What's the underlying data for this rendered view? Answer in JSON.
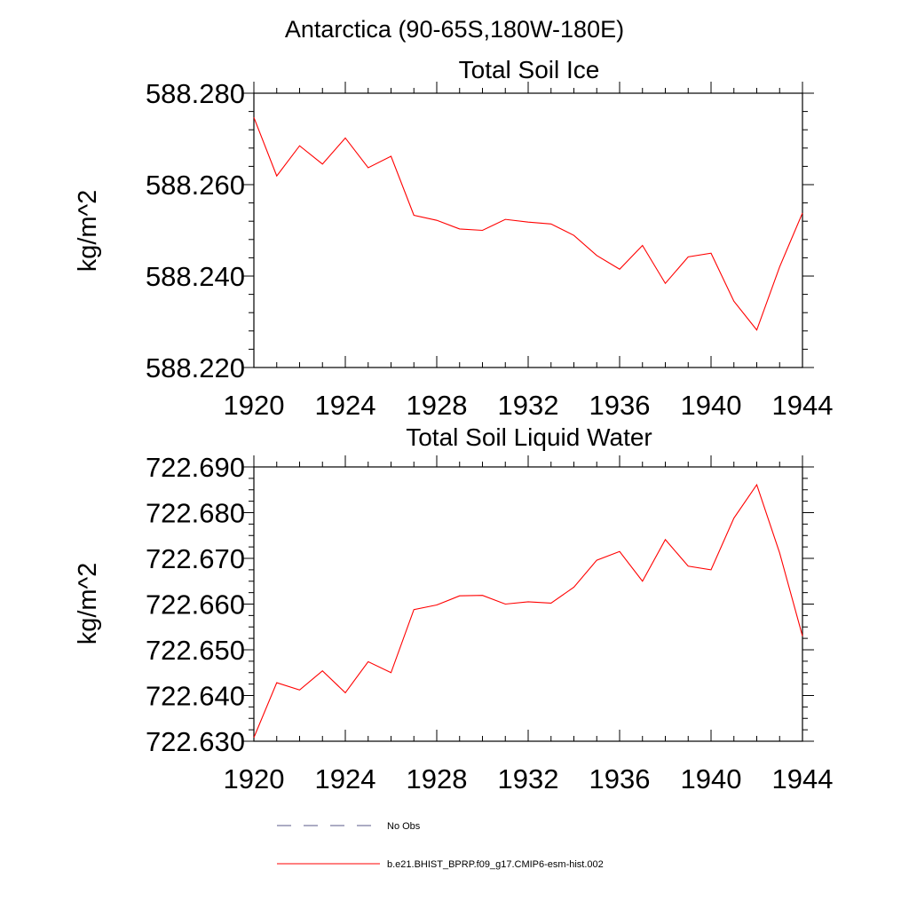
{
  "suptitle": "Antarctica (90-65S,180W-180E)",
  "colors": {
    "model": "#ff0000",
    "obs": "#5a5a8a",
    "axis": "#000000"
  },
  "legend": [
    {
      "label": "No Obs",
      "style": "dashed",
      "color": "#5a5a8a"
    },
    {
      "label": "b.e21.BHIST_BPRP.f09_g17.CMIP6-esm-hist.002",
      "style": "solid",
      "color": "#ff0000"
    }
  ],
  "chart_data": [
    {
      "type": "line",
      "title": "Total Soil Ice",
      "xlabel": "",
      "ylabel": "kg/m^2",
      "xlim": [
        1920,
        1944
      ],
      "ylim": [
        588.22,
        588.28
      ],
      "xticks": [
        "1920",
        "1924",
        "1928",
        "1932",
        "1936",
        "1940",
        "1944"
      ],
      "yticks": [
        "588.220",
        "588.240",
        "588.260",
        "588.280"
      ],
      "grid": false,
      "series": [
        {
          "name": "b.e21.BHIST_BPRP.f09_g17.CMIP6-esm-hist.002",
          "x": [
            1920,
            1921,
            1922,
            1923,
            1924,
            1925,
            1926,
            1927,
            1928,
            1929,
            1930,
            1931,
            1932,
            1933,
            1934,
            1935,
            1936,
            1937,
            1938,
            1939,
            1940,
            1941,
            1942,
            1943,
            1944
          ],
          "y": [
            588.2747,
            588.2619,
            588.2685,
            588.2645,
            588.2702,
            588.2637,
            588.2662,
            588.2533,
            588.2522,
            588.2503,
            588.25,
            588.2524,
            588.2518,
            588.2514,
            588.2489,
            588.2445,
            588.2415,
            588.2467,
            588.2384,
            588.2442,
            588.245,
            588.2345,
            588.2282,
            588.242,
            588.2538
          ]
        }
      ]
    },
    {
      "type": "line",
      "title": "Total Soil Liquid Water",
      "xlabel": "",
      "ylabel": "kg/m^2",
      "xlim": [
        1920,
        1944
      ],
      "ylim": [
        722.63,
        722.69
      ],
      "xticks": [
        "1920",
        "1924",
        "1928",
        "1932",
        "1936",
        "1940",
        "1944"
      ],
      "yticks": [
        "722.630",
        "722.640",
        "722.650",
        "722.660",
        "722.670",
        "722.680",
        "722.690"
      ],
      "grid": false,
      "series": [
        {
          "name": "b.e21.BHIST_BPRP.f09_g17.CMIP6-esm-hist.002",
          "x": [
            1920,
            1921,
            1922,
            1923,
            1924,
            1925,
            1926,
            1927,
            1928,
            1929,
            1930,
            1931,
            1932,
            1933,
            1934,
            1935,
            1936,
            1937,
            1938,
            1939,
            1940,
            1941,
            1942,
            1943,
            1944
          ],
          "y": [
            722.6308,
            722.6428,
            722.6412,
            722.6454,
            722.6406,
            722.6474,
            722.645,
            722.6588,
            722.6598,
            722.6618,
            722.6619,
            722.66,
            722.6605,
            722.6602,
            722.6637,
            722.6696,
            722.6715,
            722.665,
            722.6741,
            722.6683,
            722.6675,
            722.6788,
            722.6861,
            722.6712,
            722.653
          ]
        }
      ]
    }
  ]
}
